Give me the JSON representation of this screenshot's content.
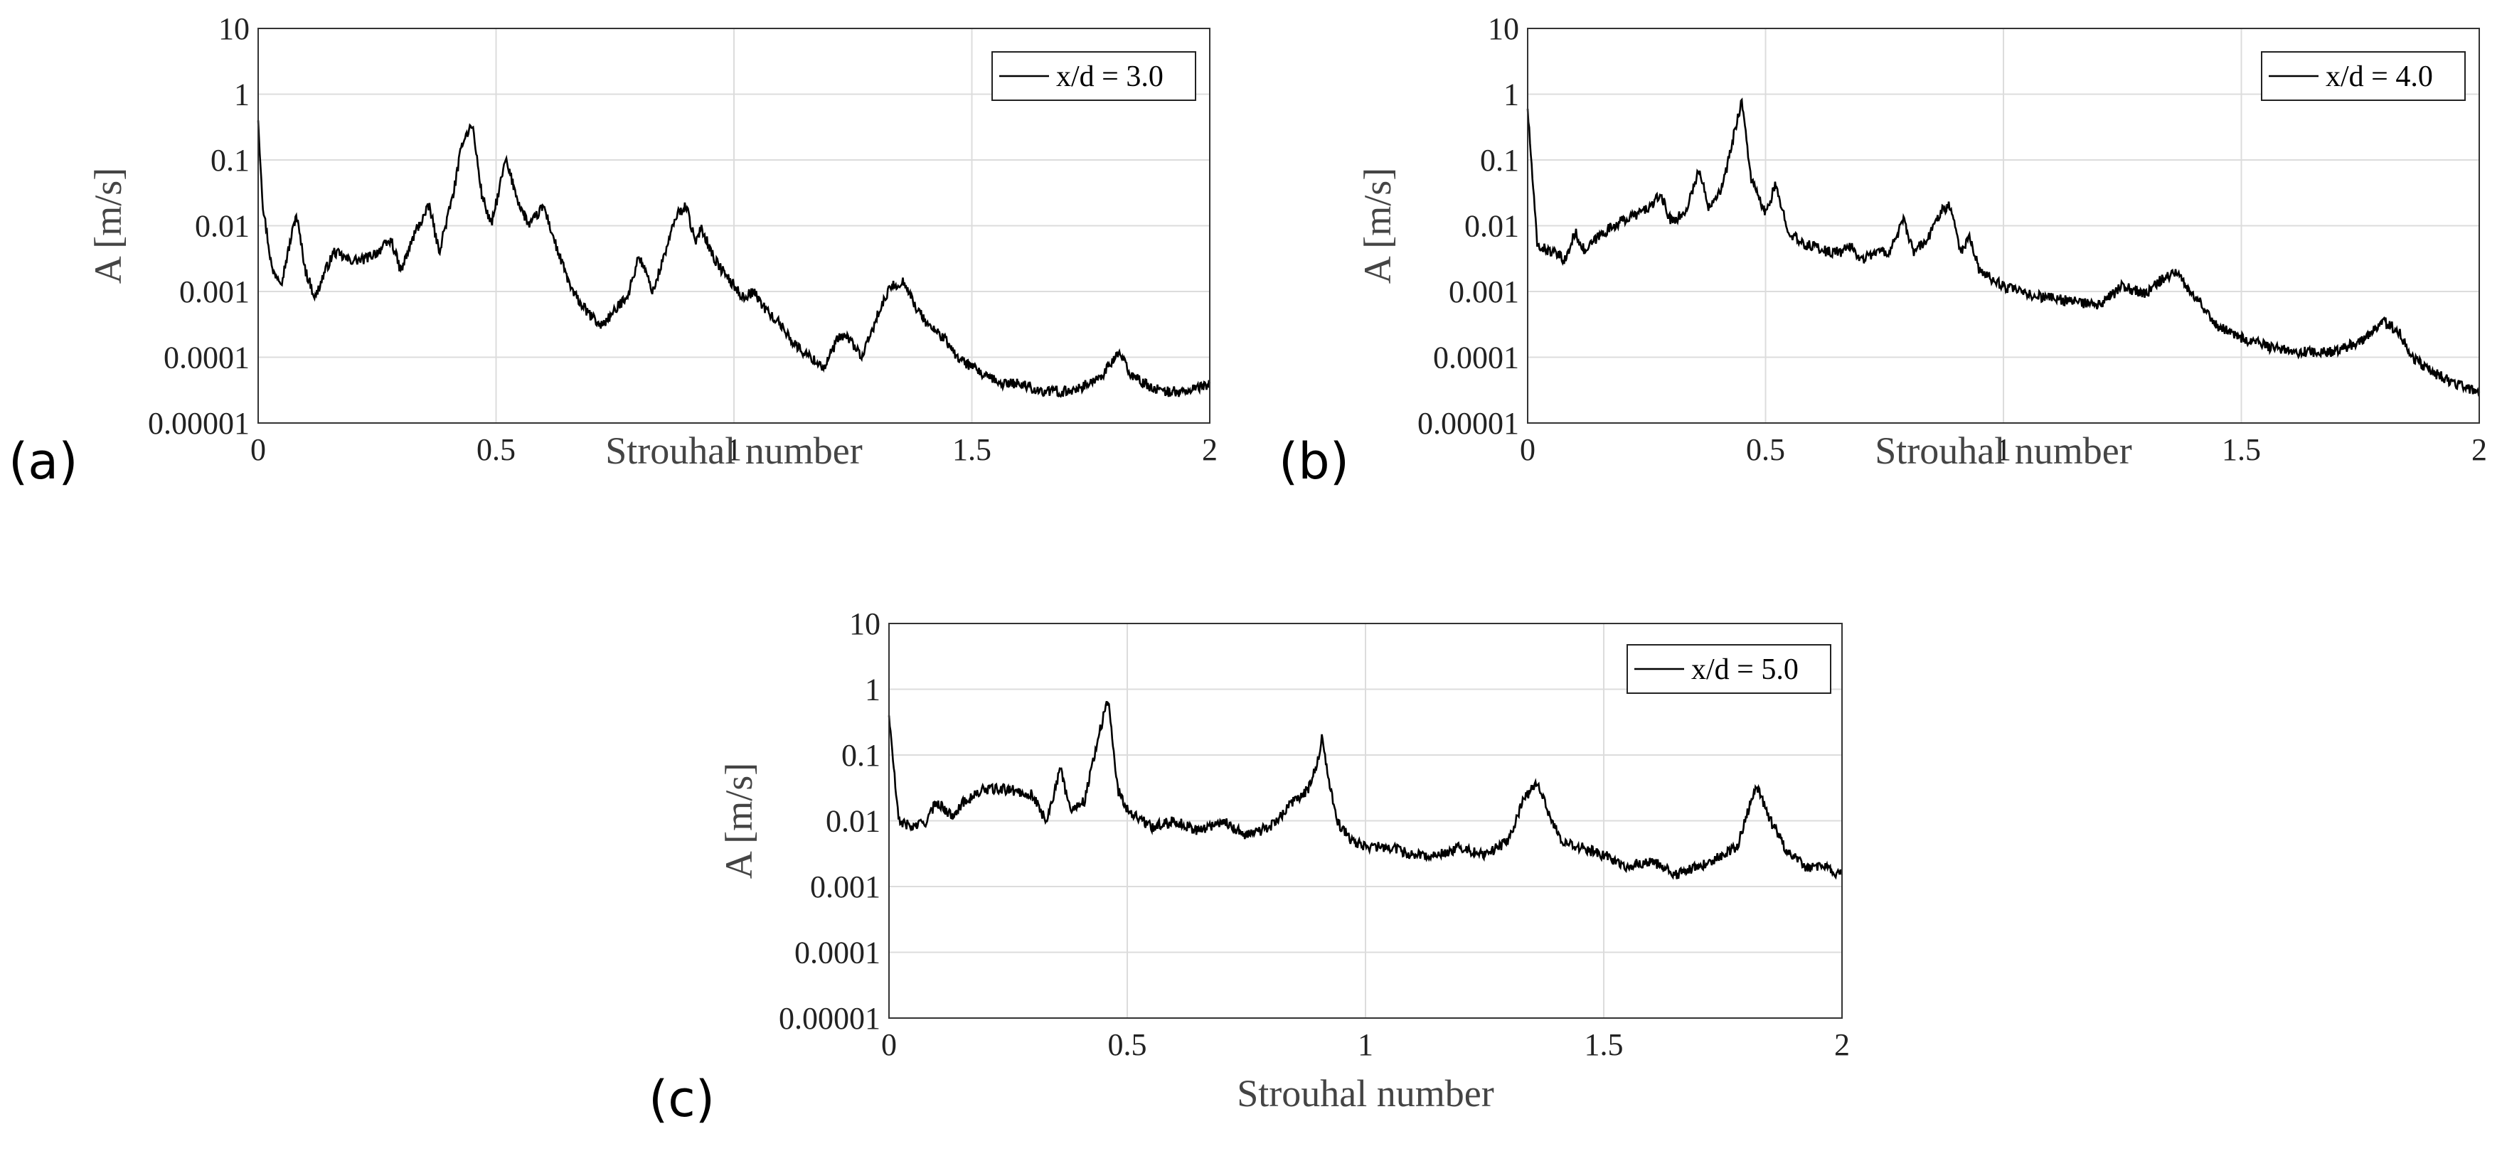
{
  "chart_data": [
    {
      "type": "line",
      "panel_label": "(a)",
      "title": "",
      "xlabel": "Strouhal number",
      "ylabel": "A [m/s]",
      "xlim": [
        0,
        2
      ],
      "ylim": [
        1e-05,
        10
      ],
      "yscale": "log",
      "x_ticks": [
        0,
        0.5,
        1,
        1.5,
        2
      ],
      "x_tick_labels": [
        "0",
        "0.5",
        "1",
        "1.5",
        "2"
      ],
      "y_ticks": [
        1e-05,
        0.0001,
        0.001,
        0.01,
        0.1,
        1,
        10
      ],
      "y_tick_labels": [
        "0.00001",
        "0.0001",
        "0.001",
        "0.01",
        "0.1",
        "1",
        "10"
      ],
      "grid": true,
      "legend": {
        "position": "top-right",
        "entries": [
          "x/d = 3.0"
        ]
      },
      "series": [
        {
          "name": "x/d = 3.0",
          "x": [
            0,
            0.01,
            0.03,
            0.05,
            0.08,
            0.1,
            0.12,
            0.14,
            0.16,
            0.19,
            0.22,
            0.25,
            0.28,
            0.3,
            0.33,
            0.36,
            0.38,
            0.41,
            0.43,
            0.45,
            0.47,
            0.49,
            0.52,
            0.55,
            0.57,
            0.6,
            0.63,
            0.66,
            0.69,
            0.72,
            0.75,
            0.78,
            0.8,
            0.83,
            0.86,
            0.88,
            0.9,
            0.92,
            0.93,
            0.96,
            0.99,
            1.02,
            1.04,
            1.07,
            1.1,
            1.13,
            1.16,
            1.19,
            1.22,
            1.24,
            1.27,
            1.3,
            1.33,
            1.36,
            1.38,
            1.41,
            1.44,
            1.47,
            1.5,
            1.53,
            1.56,
            1.6,
            1.65,
            1.7,
            1.75,
            1.78,
            1.81,
            1.83,
            1.86,
            1.9,
            1.95,
            2.0
          ],
          "values": [
            0.4,
            0.02,
            0.002,
            0.0015,
            0.015,
            0.002,
            0.0008,
            0.002,
            0.004,
            0.003,
            0.003,
            0.004,
            0.006,
            0.002,
            0.008,
            0.02,
            0.004,
            0.03,
            0.2,
            0.35,
            0.03,
            0.01,
            0.1,
            0.02,
            0.01,
            0.02,
            0.004,
            0.001,
            0.0005,
            0.0003,
            0.0005,
            0.001,
            0.0035,
            0.001,
            0.005,
            0.015,
            0.02,
            0.005,
            0.01,
            0.003,
            0.0015,
            0.0008,
            0.001,
            0.0005,
            0.0003,
            0.00015,
            0.0001,
            7e-05,
            0.0002,
            0.0002,
            0.0001,
            0.0004,
            0.0012,
            0.0014,
            0.0006,
            0.0003,
            0.0002,
            0.0001,
            7e-05,
            5e-05,
            4e-05,
            4e-05,
            3e-05,
            3e-05,
            4e-05,
            6e-05,
            0.00012,
            6e-05,
            4e-05,
            3e-05,
            3e-05,
            4e-05
          ]
        }
      ]
    },
    {
      "type": "line",
      "panel_label": "(b)",
      "title": "",
      "xlabel": "Strouhal number",
      "ylabel": "A [m/s]",
      "xlim": [
        0,
        2
      ],
      "ylim": [
        1e-05,
        10
      ],
      "yscale": "log",
      "x_ticks": [
        0,
        0.5,
        1,
        1.5,
        2
      ],
      "x_tick_labels": [
        "0",
        "0.5",
        "1",
        "1.5",
        "2"
      ],
      "y_ticks": [
        1e-05,
        0.0001,
        0.001,
        0.01,
        0.1,
        1,
        10
      ],
      "y_tick_labels": [
        "0.00001",
        "0.0001",
        "0.001",
        "0.01",
        "0.1",
        "1",
        "10"
      ],
      "grid": true,
      "legend": {
        "position": "top-right",
        "entries": [
          "x/d = 4.0"
        ]
      },
      "series": [
        {
          "name": "x/d = 4.0",
          "x": [
            0,
            0.02,
            0.05,
            0.08,
            0.1,
            0.12,
            0.15,
            0.18,
            0.2,
            0.23,
            0.26,
            0.28,
            0.3,
            0.33,
            0.36,
            0.38,
            0.41,
            0.44,
            0.45,
            0.47,
            0.5,
            0.52,
            0.55,
            0.58,
            0.6,
            0.63,
            0.66,
            0.68,
            0.7,
            0.73,
            0.76,
            0.79,
            0.81,
            0.84,
            0.87,
            0.89,
            0.91,
            0.93,
            0.95,
            0.98,
            1.0,
            1.05,
            1.1,
            1.15,
            1.2,
            1.25,
            1.3,
            1.33,
            1.36,
            1.4,
            1.45,
            1.5,
            1.55,
            1.6,
            1.65,
            1.7,
            1.75,
            1.8,
            1.83,
            1.86,
            1.9,
            1.95,
            2.0
          ],
          "values": [
            0.6,
            0.005,
            0.004,
            0.003,
            0.008,
            0.004,
            0.007,
            0.01,
            0.012,
            0.015,
            0.02,
            0.03,
            0.012,
            0.015,
            0.07,
            0.02,
            0.04,
            0.4,
            0.8,
            0.05,
            0.015,
            0.04,
            0.008,
            0.005,
            0.005,
            0.004,
            0.004,
            0.005,
            0.003,
            0.004,
            0.004,
            0.012,
            0.004,
            0.006,
            0.018,
            0.02,
            0.004,
            0.007,
            0.002,
            0.0015,
            0.0012,
            0.0009,
            0.0008,
            0.0007,
            0.0006,
            0.0012,
            0.0009,
            0.0015,
            0.002,
            0.0009,
            0.0003,
            0.0002,
            0.00015,
            0.00012,
            0.00012,
            0.00012,
            0.00018,
            0.00035,
            0.00025,
            0.0001,
            6e-05,
            4e-05,
            3e-05
          ]
        }
      ]
    },
    {
      "type": "line",
      "panel_label": "(c)",
      "title": "",
      "xlabel": "Strouhal number",
      "ylabel": "A [m/s]",
      "xlim": [
        0,
        2
      ],
      "ylim": [
        1e-05,
        10
      ],
      "yscale": "log",
      "x_ticks": [
        0,
        0.5,
        1,
        1.5,
        2
      ],
      "x_tick_labels": [
        "0",
        "0.5",
        "1",
        "1.5",
        "2"
      ],
      "y_ticks": [
        1e-05,
        0.0001,
        0.001,
        0.01,
        0.1,
        1,
        10
      ],
      "y_tick_labels": [
        "0.00001",
        "0.0001",
        "0.001",
        "0.01",
        "0.1",
        "1",
        "10"
      ],
      "grid": true,
      "legend": {
        "position": "top-right",
        "entries": [
          "x/d = 5.0"
        ]
      },
      "series": [
        {
          "name": "x/d = 5.0",
          "x": [
            0,
            0.02,
            0.05,
            0.08,
            0.1,
            0.13,
            0.16,
            0.2,
            0.25,
            0.3,
            0.33,
            0.36,
            0.38,
            0.41,
            0.44,
            0.46,
            0.48,
            0.5,
            0.55,
            0.6,
            0.65,
            0.7,
            0.75,
            0.8,
            0.85,
            0.88,
            0.9,
            0.91,
            0.92,
            0.94,
            0.97,
            1.0,
            1.05,
            1.1,
            1.15,
            1.2,
            1.25,
            1.3,
            1.33,
            1.36,
            1.38,
            1.41,
            1.45,
            1.5,
            1.55,
            1.6,
            1.65,
            1.7,
            1.75,
            1.78,
            1.82,
            1.85,
            1.88,
            1.92,
            1.96,
            2.0
          ],
          "values": [
            0.4,
            0.01,
            0.008,
            0.01,
            0.02,
            0.012,
            0.02,
            0.03,
            0.03,
            0.025,
            0.01,
            0.06,
            0.015,
            0.02,
            0.2,
            0.7,
            0.03,
            0.015,
            0.008,
            0.01,
            0.007,
            0.01,
            0.006,
            0.008,
            0.02,
            0.03,
            0.08,
            0.2,
            0.05,
            0.01,
            0.005,
            0.004,
            0.004,
            0.003,
            0.003,
            0.004,
            0.003,
            0.005,
            0.02,
            0.04,
            0.015,
            0.005,
            0.004,
            0.003,
            0.002,
            0.0025,
            0.0015,
            0.002,
            0.003,
            0.004,
            0.035,
            0.01,
            0.004,
            0.002,
            0.002,
            0.0015
          ]
        }
      ]
    }
  ]
}
